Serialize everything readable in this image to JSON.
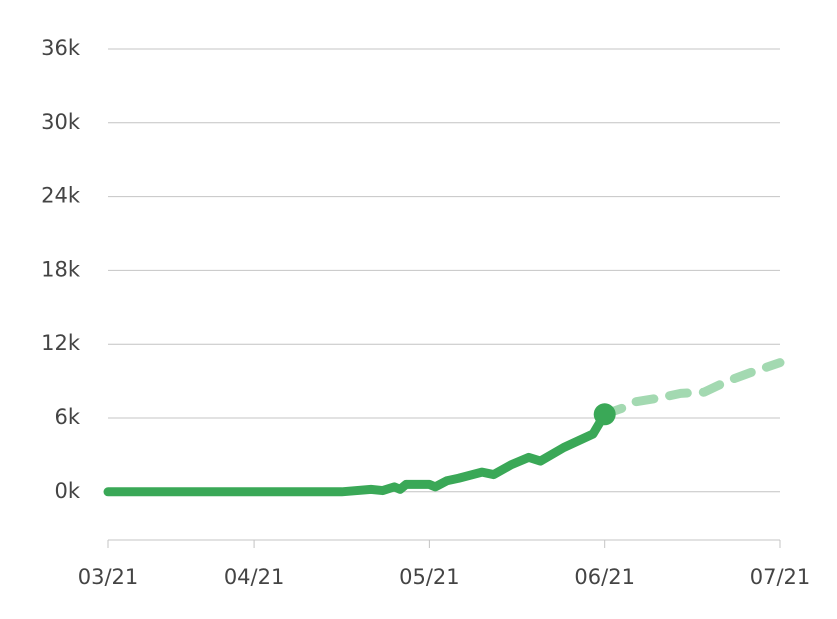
{
  "chart_data": {
    "type": "line",
    "series": [
      {
        "color": "#3aa857",
        "dashed": false,
        "end_marker": true,
        "x": [
          0,
          16,
          40,
          45,
          47,
          49,
          50,
          51,
          55,
          56,
          58,
          60,
          64,
          66,
          69,
          72,
          74,
          78,
          83,
          85
        ],
        "values": [
          0,
          0,
          0,
          200,
          100,
          400,
          200,
          600,
          600,
          400,
          900,
          1100,
          1600,
          1400,
          2200,
          2800,
          2500,
          3600,
          4700,
          6300
        ]
      },
      {
        "color": "#a3d9b1",
        "dashed": true,
        "end_marker": false,
        "x": [
          85,
          88,
          90,
          94,
          98,
          102,
          106,
          110,
          115
        ],
        "values": [
          6300,
          6800,
          7300,
          7600,
          8000,
          8100,
          9000,
          9700,
          10500
        ]
      }
    ],
    "xlim": [
      0,
      115
    ],
    "xticks": [
      {
        "value": 0,
        "label": "03/21"
      },
      {
        "value": 25,
        "label": "04/21"
      },
      {
        "value": 55,
        "label": "05/21"
      },
      {
        "value": 85,
        "label": "06/21"
      },
      {
        "value": 115,
        "label": "07/21"
      }
    ],
    "ylim": [
      -4000,
      36000
    ],
    "yticks": [
      {
        "value": 0,
        "label": "0k"
      },
      {
        "value": 6000,
        "label": "6k"
      },
      {
        "value": 12000,
        "label": "12k"
      },
      {
        "value": 18000,
        "label": "18k"
      },
      {
        "value": 24000,
        "label": "24k"
      },
      {
        "value": 30000,
        "label": "30k"
      },
      {
        "value": 36000,
        "label": "36k"
      }
    ],
    "grid": true
  }
}
